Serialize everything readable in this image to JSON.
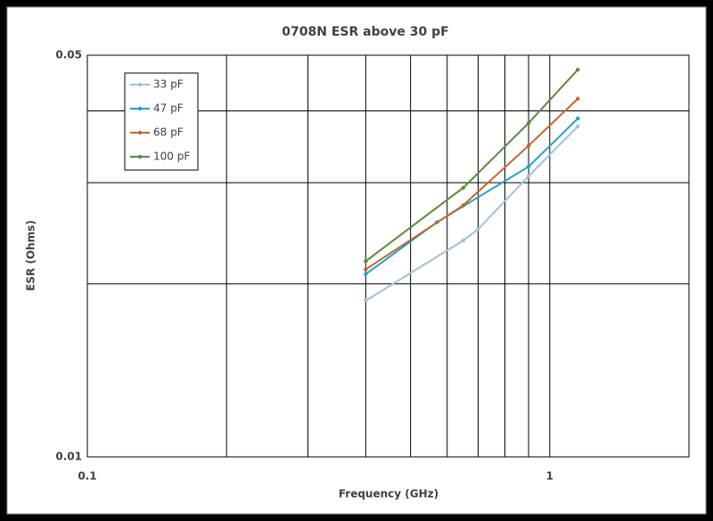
{
  "chart_data": {
    "type": "line",
    "title": "0708N ESR above 30 pF",
    "x_label": "Frequency (GHz)",
    "y_label": "ESR (Ohms)",
    "log_x": true,
    "log_y": true,
    "grid": true,
    "legend": "upper left",
    "xlim": [
      0.1,
      2
    ],
    "ylim": [
      0.01,
      0.05
    ],
    "xticks": [
      0.1,
      1
    ],
    "yticks": [
      0.01,
      0.05
    ],
    "xgrid": [
      0.2,
      0.3,
      0.4,
      0.5,
      0.6,
      0.7,
      0.8,
      0.9,
      1
    ],
    "ygrid": [
      0.02,
      0.03,
      0.04,
      0.05
    ],
    "series": [
      {
        "name": "33 pF",
        "color": "#9dc3d8",
        "x": [
          0.4,
          0.65,
          0.7,
          0.9,
          1.15
        ],
        "values": [
          0.0187,
          0.0238,
          0.0249,
          0.0308,
          0.0376
        ]
      },
      {
        "name": "47 pF",
        "color": "#1fa3cc",
        "x": [
          0.4,
          0.57,
          0.9,
          1.15
        ],
        "values": [
          0.0208,
          0.0256,
          0.032,
          0.0388
        ]
      },
      {
        "name": "68 pF",
        "color": "#c5652a",
        "x": [
          0.4,
          0.65,
          0.9,
          1.15
        ],
        "values": [
          0.0212,
          0.0274,
          0.0348,
          0.042
        ]
      },
      {
        "name": "100 pF",
        "color": "#5a8a3a",
        "x": [
          0.4,
          0.65,
          0.9,
          1.15
        ],
        "values": [
          0.0219,
          0.0294,
          0.0381,
          0.0472
        ]
      }
    ]
  }
}
